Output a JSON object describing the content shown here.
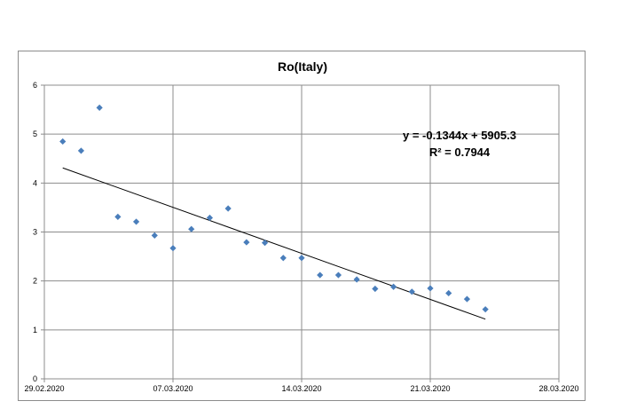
{
  "chart_data": {
    "type": "scatter",
    "title": "Ro(Italy)",
    "xlabel": "",
    "ylabel": "",
    "x_axis_type": "date",
    "xlim": [
      "29.02.2020",
      "28.03.2020"
    ],
    "ylim": [
      0,
      6
    ],
    "x_ticks": [
      "29.02.2020",
      "07.03.2020",
      "14.03.2020",
      "21.03.2020",
      "28.03.2020"
    ],
    "y_ticks": [
      0,
      1,
      2,
      3,
      4,
      5,
      6
    ],
    "grid": true,
    "legend": "none",
    "marker_color": "#4a7ebb",
    "trendline_color": "#000000",
    "series": [
      {
        "points": [
          {
            "x": "01.03.2020",
            "y": 4.85
          },
          {
            "x": "02.03.2020",
            "y": 4.66
          },
          {
            "x": "03.03.2020",
            "y": 5.54
          },
          {
            "x": "04.03.2020",
            "y": 3.31
          },
          {
            "x": "05.03.2020",
            "y": 3.21
          },
          {
            "x": "06.03.2020",
            "y": 2.93
          },
          {
            "x": "07.03.2020",
            "y": 2.67
          },
          {
            "x": "08.03.2020",
            "y": 3.06
          },
          {
            "x": "09.03.2020",
            "y": 3.29
          },
          {
            "x": "10.03.2020",
            "y": 3.48
          },
          {
            "x": "11.03.2020",
            "y": 2.79
          },
          {
            "x": "12.03.2020",
            "y": 2.78
          },
          {
            "x": "13.03.2020",
            "y": 2.47
          },
          {
            "x": "14.03.2020",
            "y": 2.47
          },
          {
            "x": "15.03.2020",
            "y": 2.12
          },
          {
            "x": "16.03.2020",
            "y": 2.12
          },
          {
            "x": "17.03.2020",
            "y": 2.03
          },
          {
            "x": "18.03.2020",
            "y": 1.84
          },
          {
            "x": "19.03.2020",
            "y": 1.88
          },
          {
            "x": "20.03.2020",
            "y": 1.78
          },
          {
            "x": "21.03.2020",
            "y": 1.85
          },
          {
            "x": "22.03.2020",
            "y": 1.75
          },
          {
            "x": "23.03.2020",
            "y": 1.63
          },
          {
            "x": "24.03.2020",
            "y": 1.42
          }
        ]
      }
    ],
    "trendline": {
      "start": {
        "x": "01.03.2020",
        "y": 4.31
      },
      "end": {
        "x": "24.03.2020",
        "y": 1.22
      }
    },
    "annotations": {
      "equation": "y = -0.1344x + 5905.3",
      "r_squared": "R² = 0.7944"
    }
  }
}
